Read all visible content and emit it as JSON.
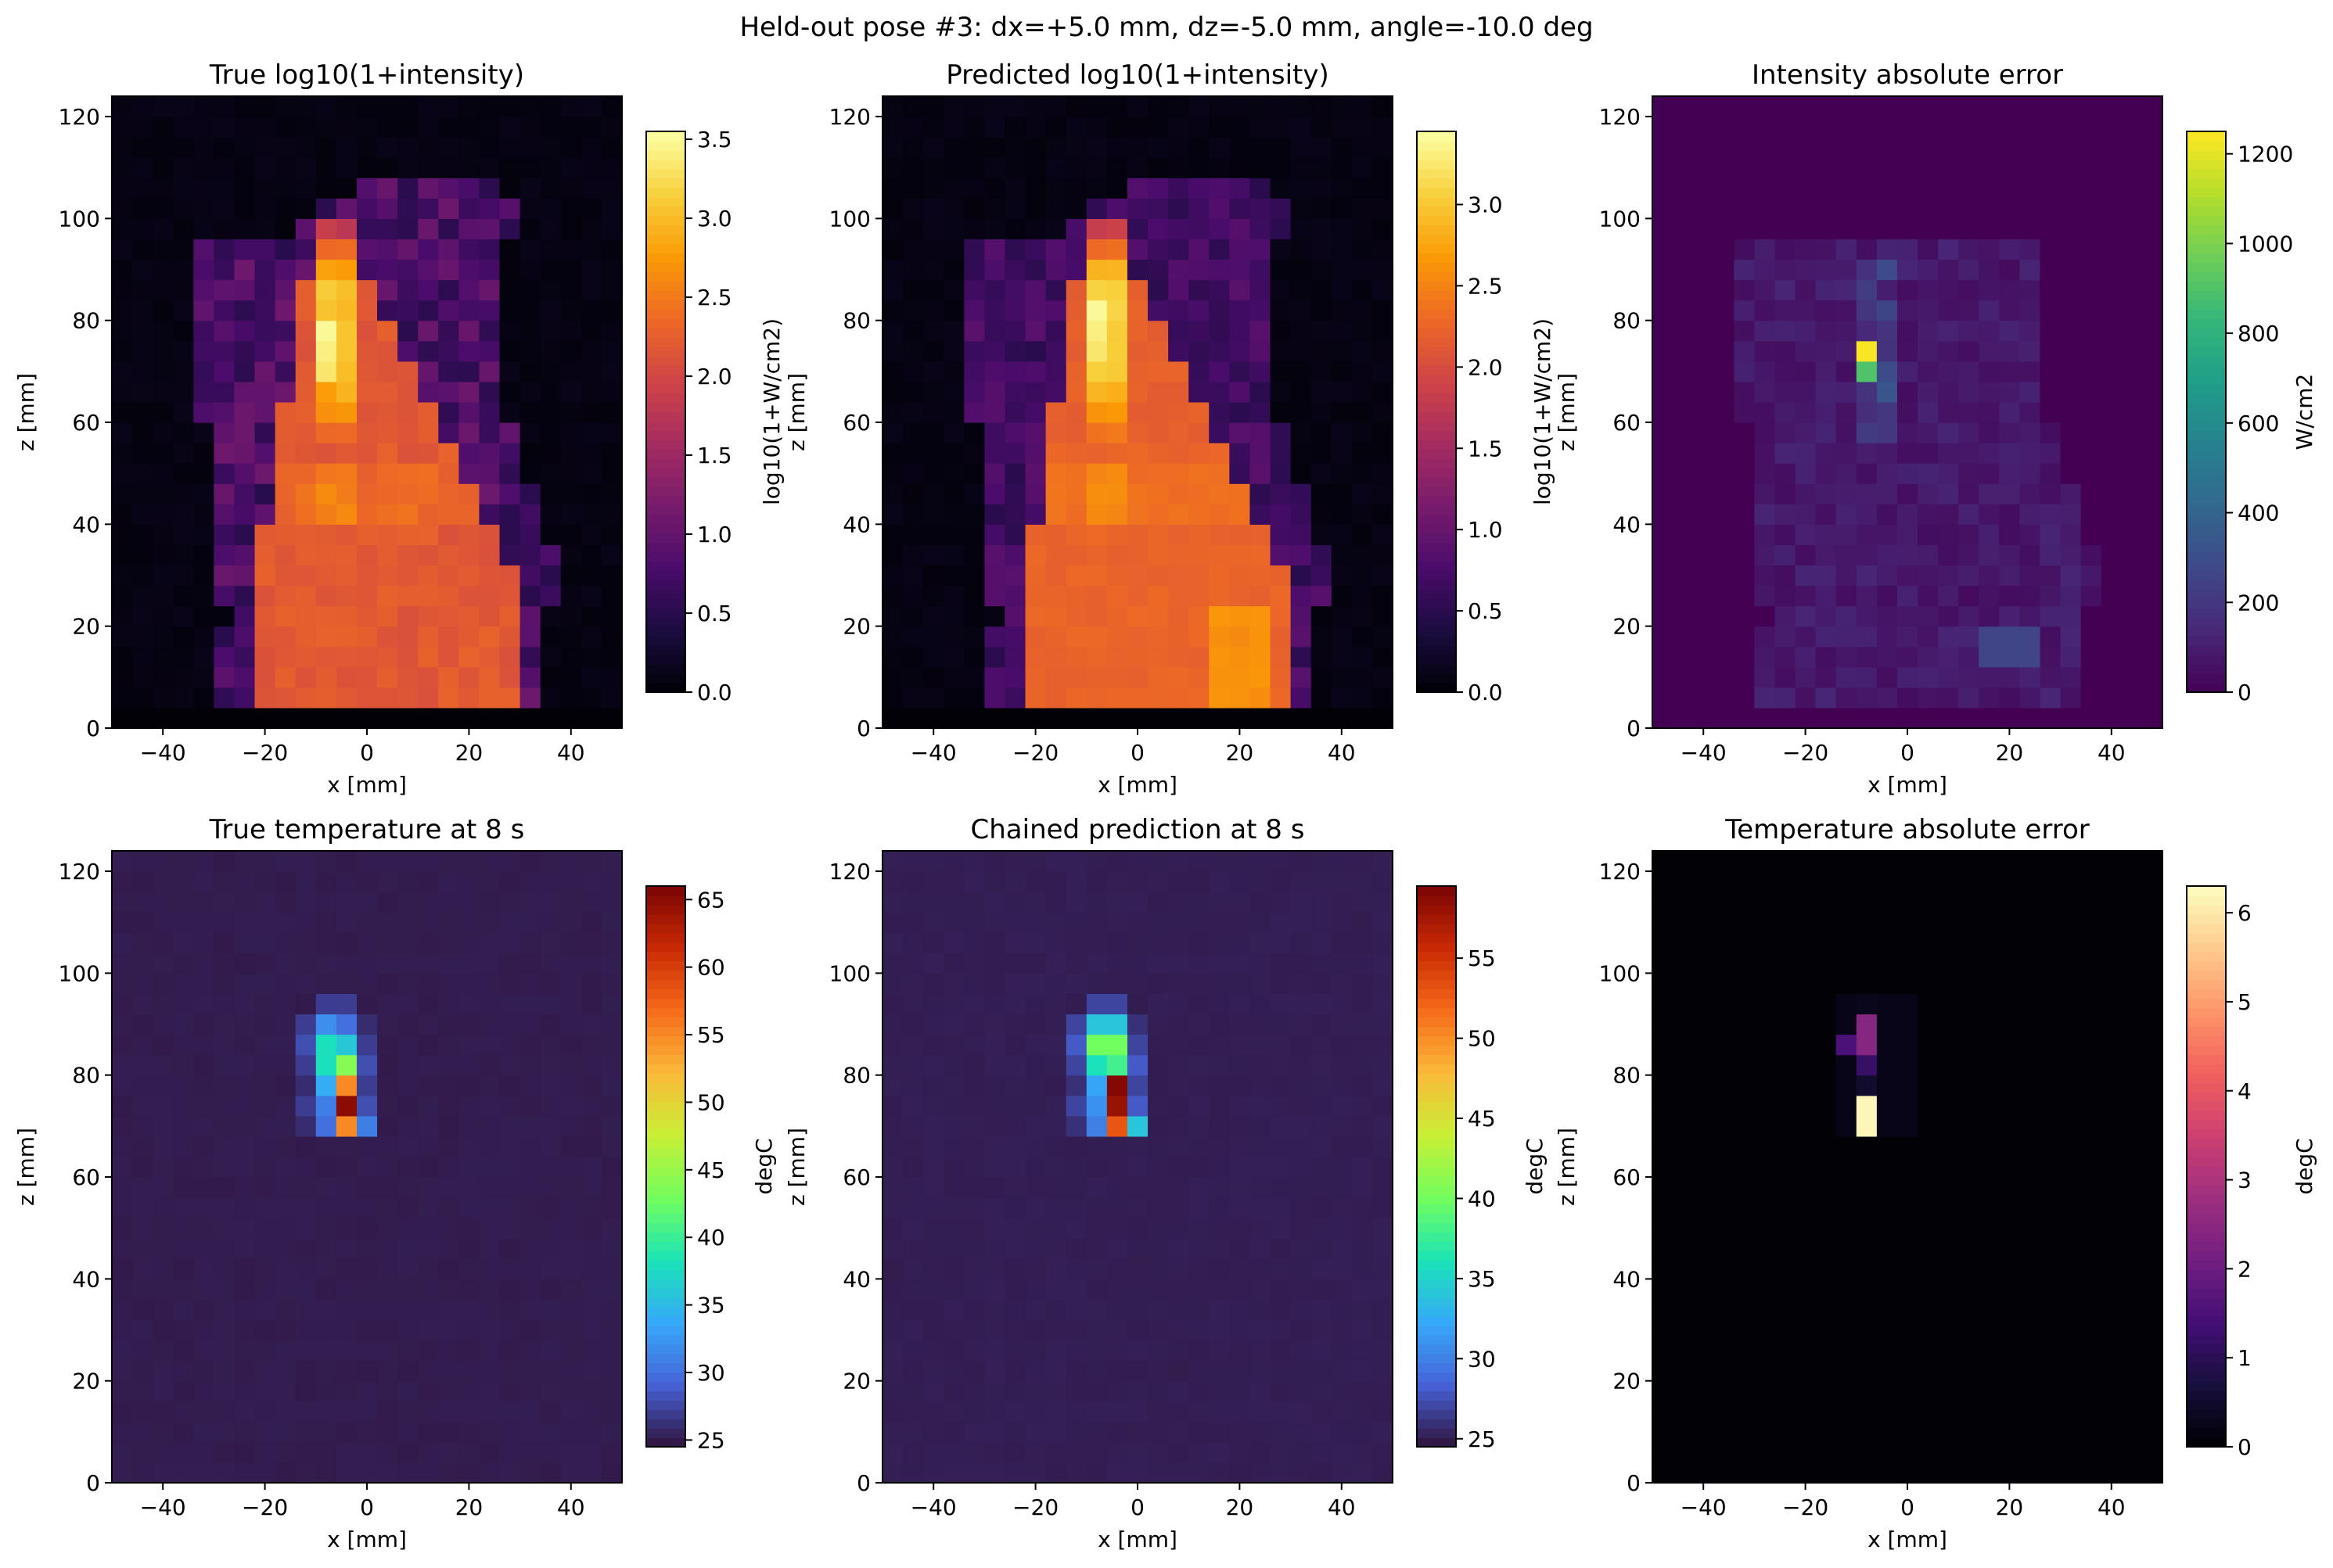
{
  "figure": {
    "suptitle": "Held-out pose #3: dx=+5.0 mm, dz=-5.0 mm, angle=-10.0 deg"
  },
  "colormaps": {
    "inferno": [
      "#000004",
      "#1b0c41",
      "#4a0c6b",
      "#781c6d",
      "#a52c60",
      "#cf4446",
      "#ed6925",
      "#fb9b06",
      "#f7d13d",
      "#fcffa4"
    ],
    "viridis": [
      "#440154",
      "#482878",
      "#3e4989",
      "#31688e",
      "#26828e",
      "#1f9e89",
      "#35b779",
      "#6ece58",
      "#b5de2b",
      "#fde725"
    ],
    "turbo": [
      "#30123b",
      "#4662d7",
      "#36aaf9",
      "#1ae4b6",
      "#72fe5e",
      "#c8ef34",
      "#faba39",
      "#f66b19",
      "#ca2a04",
      "#7a0403"
    ],
    "magma": [
      "#000004",
      "#180f3d",
      "#440f76",
      "#721f81",
      "#9e2f7f",
      "#cd4071",
      "#f1605d",
      "#fd9668",
      "#feca8d",
      "#fcfdbf"
    ]
  },
  "chart_data": [
    {
      "id": "true_intensity",
      "type": "heatmap",
      "title": "True log10(1+intensity)",
      "xlabel": "x [mm]",
      "ylabel": "z [mm]",
      "xlim": [
        -50,
        50
      ],
      "ylim": [
        0,
        124
      ],
      "xticks": [
        -40,
        -20,
        0,
        20,
        40
      ],
      "yticks": [
        0,
        20,
        40,
        60,
        80,
        100,
        120
      ],
      "cell_size_mm": 4,
      "colormap": "inferno",
      "clim": [
        0,
        3.55
      ],
      "colorbar_label": "log10(1+W/cm2)",
      "colorbar_ticks": [
        "0.0",
        "0.5",
        "1.0",
        "1.5",
        "2.0",
        "2.5",
        "3.0",
        "3.5"
      ],
      "peak": {
        "x": -6,
        "z": 78,
        "value": 3.5
      },
      "background": 0.05
    },
    {
      "id": "pred_intensity",
      "type": "heatmap",
      "title": "Predicted log10(1+intensity)",
      "xlabel": "x [mm]",
      "ylabel": "z [mm]",
      "xlim": [
        -50,
        50
      ],
      "ylim": [
        0,
        124
      ],
      "xticks": [
        -40,
        -20,
        0,
        20,
        40
      ],
      "yticks": [
        0,
        20,
        40,
        60,
        80,
        100,
        120
      ],
      "cell_size_mm": 4,
      "colormap": "inferno",
      "clim": [
        0,
        3.45
      ],
      "colorbar_label": "log10(1+W/cm2)",
      "colorbar_ticks": [
        "0.0",
        "0.5",
        "1.0",
        "1.5",
        "2.0",
        "2.5",
        "3.0"
      ],
      "peak": {
        "x": -6,
        "z": 82,
        "value": 3.4
      },
      "background": 0.05
    },
    {
      "id": "intensity_error",
      "type": "heatmap",
      "title": "Intensity absolute error",
      "xlabel": "x [mm]",
      "ylabel": "z [mm]",
      "xlim": [
        -50,
        50
      ],
      "ylim": [
        0,
        124
      ],
      "xticks": [
        -40,
        -20,
        0,
        20,
        40
      ],
      "yticks": [
        0,
        20,
        40,
        60,
        80,
        100,
        120
      ],
      "cell_size_mm": 4,
      "colormap": "viridis",
      "clim": [
        0,
        1250
      ],
      "colorbar_label": "W/cm2",
      "colorbar_ticks": [
        "0",
        "200",
        "400",
        "600",
        "800",
        "1000",
        "1200"
      ],
      "peak": {
        "x": -6,
        "z": 74,
        "value": 1240
      },
      "background": 0
    },
    {
      "id": "true_temperature",
      "type": "heatmap",
      "title": "True temperature at 8 s",
      "xlabel": "x [mm]",
      "ylabel": "z [mm]",
      "xlim": [
        -50,
        50
      ],
      "ylim": [
        0,
        124
      ],
      "xticks": [
        -40,
        -20,
        0,
        20,
        40
      ],
      "yticks": [
        0,
        20,
        40,
        60,
        80,
        100,
        120
      ],
      "cell_size_mm": 4,
      "colormap": "turbo",
      "clim": [
        24.5,
        66
      ],
      "colorbar_label": "degC",
      "colorbar_ticks": [
        "25",
        "30",
        "35",
        "40",
        "45",
        "50",
        "55",
        "60",
        "65"
      ],
      "peak": {
        "x": -6,
        "z": 74,
        "value": 65.5
      },
      "background": 25
    },
    {
      "id": "pred_temperature",
      "type": "heatmap",
      "title": "Chained prediction at 8 s",
      "xlabel": "x [mm]",
      "ylabel": "z [mm]",
      "xlim": [
        -50,
        50
      ],
      "ylim": [
        0,
        124
      ],
      "xticks": [
        -40,
        -20,
        0,
        20,
        40
      ],
      "yticks": [
        0,
        20,
        40,
        60,
        80,
        100,
        120
      ],
      "cell_size_mm": 4,
      "colormap": "turbo",
      "clim": [
        24.5,
        59.5
      ],
      "colorbar_label": "degC",
      "colorbar_ticks": [
        "25",
        "30",
        "35",
        "40",
        "45",
        "50",
        "55"
      ],
      "peak": {
        "x": -6,
        "z": 78,
        "value": 59
      },
      "background": 25
    },
    {
      "id": "temperature_error",
      "type": "heatmap",
      "title": "Temperature absolute error",
      "xlabel": "x [mm]",
      "ylabel": "z [mm]",
      "xlim": [
        -50,
        50
      ],
      "ylim": [
        0,
        124
      ],
      "xticks": [
        -40,
        -20,
        0,
        20,
        40
      ],
      "yticks": [
        0,
        20,
        40,
        60,
        80,
        100,
        120
      ],
      "cell_size_mm": 4,
      "colormap": "magma",
      "clim": [
        0,
        6.3
      ],
      "colorbar_label": "degC",
      "colorbar_ticks": [
        "0",
        "1",
        "2",
        "3",
        "4",
        "5",
        "6"
      ],
      "peak": {
        "x": -6,
        "z": 74,
        "value": 6.2
      },
      "background": 0
    }
  ]
}
